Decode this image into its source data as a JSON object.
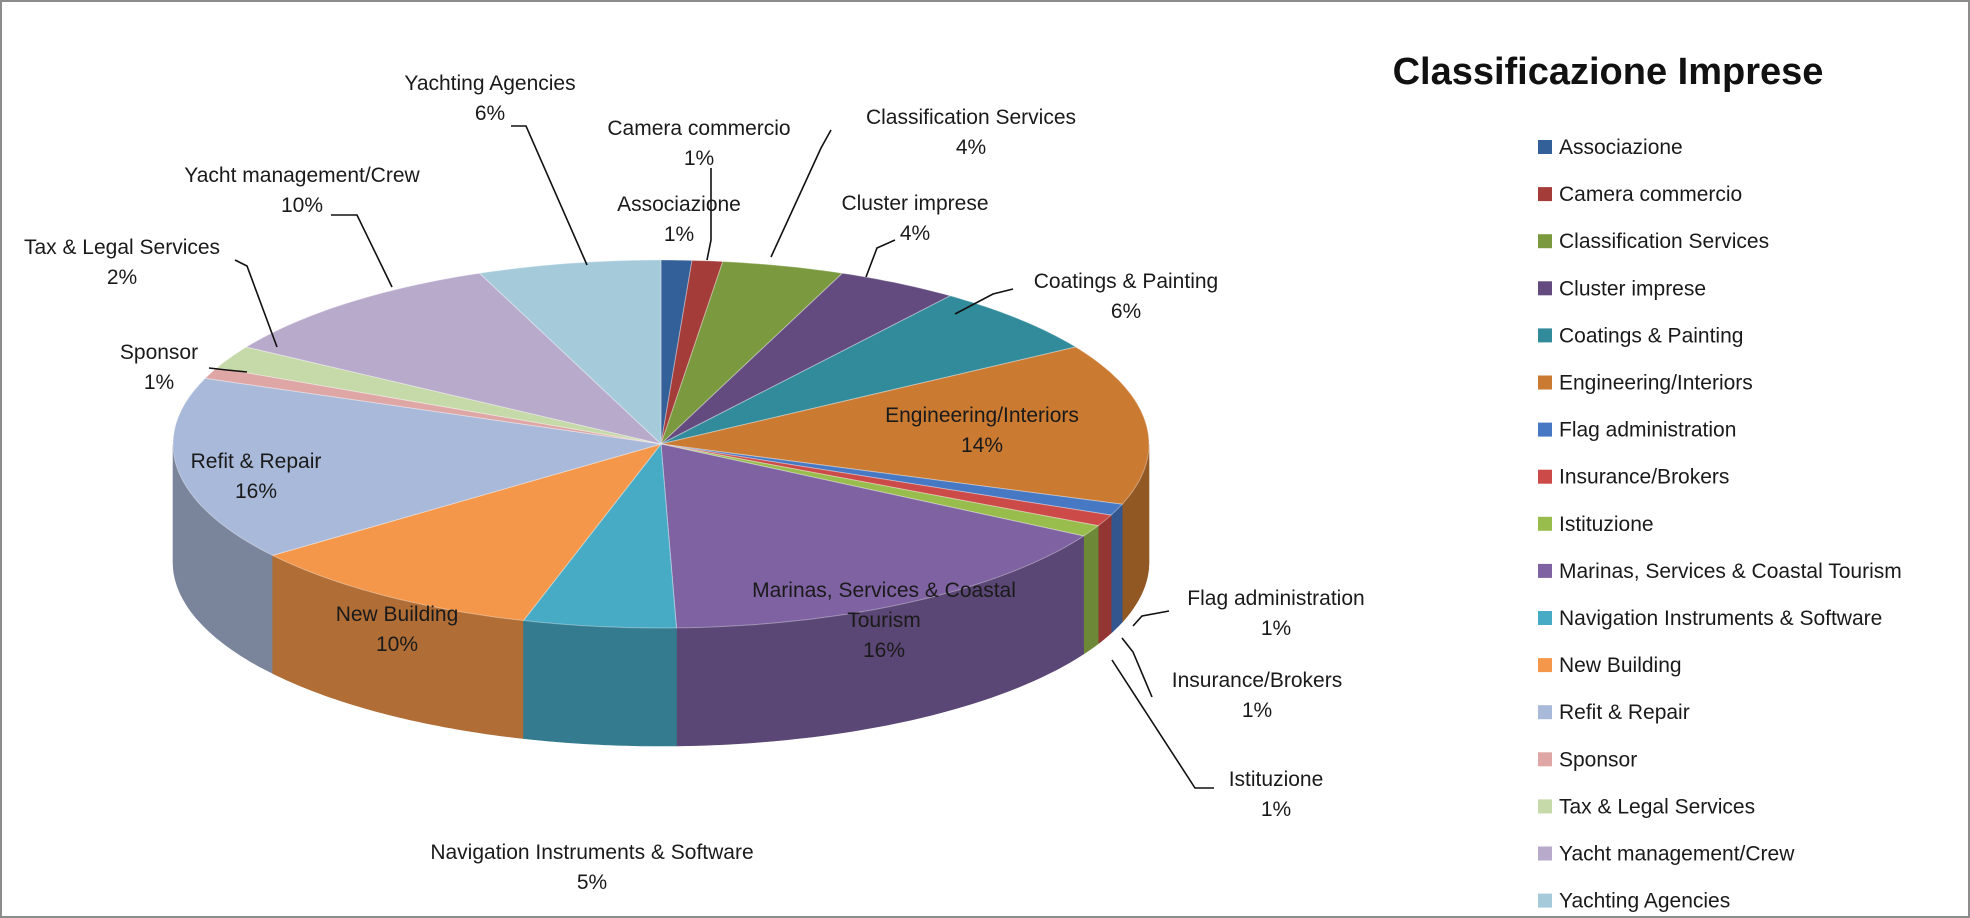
{
  "chart_data": {
    "type": "pie",
    "style": "3d",
    "title": "Classificazione Imprese",
    "legend_position": "right",
    "slices": [
      {
        "name": "Associazione",
        "value": 1,
        "pct_label": "1%",
        "color": "#34609a"
      },
      {
        "name": "Camera commercio",
        "value": 1,
        "pct_label": "1%",
        "color": "#a43c39"
      },
      {
        "name": "Classification Services",
        "value": 4,
        "pct_label": "4%",
        "color": "#7b9a3f"
      },
      {
        "name": "Cluster imprese",
        "value": 4,
        "pct_label": "4%",
        "color": "#634b80"
      },
      {
        "name": "Coatings & Painting",
        "value": 6,
        "pct_label": "6%",
        "color": "#318b9b"
      },
      {
        "name": "Engineering/Interiors",
        "value": 14,
        "pct_label": "14%",
        "color": "#cb7a32"
      },
      {
        "name": "Flag administration",
        "value": 1,
        "pct_label": "1%",
        "color": "#4678c4"
      },
      {
        "name": "Insurance/Brokers",
        "value": 1,
        "pct_label": "1%",
        "color": "#cc4a47"
      },
      {
        "name": "Istituzione",
        "value": 1,
        "pct_label": "1%",
        "color": "#98bd4d"
      },
      {
        "name": "Marinas, Services & Coastal Tourism",
        "value": 16,
        "pct_label": "16%",
        "color": "#7f62a2"
      },
      {
        "name": "Navigation Instruments & Software",
        "value": 5,
        "pct_label": "5%",
        "color": "#48abc6"
      },
      {
        "name": "New Building",
        "value": 10,
        "pct_label": "10%",
        "color": "#f4974a"
      },
      {
        "name": "Refit & Repair",
        "value": 16,
        "pct_label": "16%",
        "color": "#a9b9d9"
      },
      {
        "name": "Sponsor",
        "value": 1,
        "pct_label": "1%",
        "color": "#dfa6a6"
      },
      {
        "name": "Tax & Legal Services",
        "value": 2,
        "pct_label": "2%",
        "color": "#c6d9a8"
      },
      {
        "name": "Yacht management/Crew",
        "value": 10,
        "pct_label": "10%",
        "color": "#b8aacb"
      },
      {
        "name": "Yachting Agencies",
        "value": 6,
        "pct_label": "6%",
        "color": "#a5cbdb"
      }
    ]
  }
}
